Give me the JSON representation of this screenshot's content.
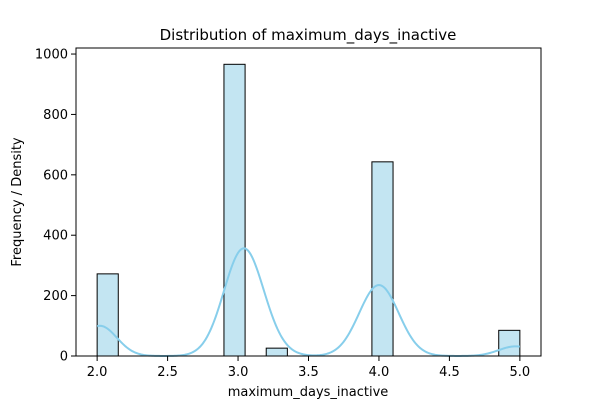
{
  "chart_data": {
    "type": "bar",
    "title": "Distribution of maximum_days_inactive",
    "xlabel": "maximum_days_inactive",
    "ylabel": "Frequency / Density",
    "xlim": [
      1.85,
      5.15
    ],
    "ylim": [
      0,
      1020
    ],
    "x_ticks": [
      "2.0",
      "2.5",
      "3.0",
      "3.5",
      "4.0",
      "4.5",
      "5.0"
    ],
    "y_ticks": [
      "0",
      "200",
      "400",
      "600",
      "800",
      "1000"
    ],
    "bin_width": 0.15,
    "bars": [
      {
        "x0": 2.0,
        "x1": 2.15,
        "value": 272
      },
      {
        "x0": 2.9,
        "x1": 3.05,
        "value": 966
      },
      {
        "x0": 3.2,
        "x1": 3.35,
        "value": 26
      },
      {
        "x0": 3.95,
        "x1": 4.1,
        "value": 643
      },
      {
        "x0": 4.85,
        "x1": 5.0,
        "value": 85
      }
    ],
    "kde": {
      "peaks": [
        {
          "center": 2.02,
          "height": 100,
          "sigma": 0.12
        },
        {
          "center": 3.04,
          "height": 355,
          "sigma": 0.14
        },
        {
          "center": 3.25,
          "height": 8,
          "sigma": 0.12
        },
        {
          "center": 4.0,
          "height": 235,
          "sigma": 0.14
        },
        {
          "center": 4.97,
          "height": 32,
          "sigma": 0.12
        }
      ],
      "x_range": [
        2.0,
        5.0
      ]
    },
    "colors": {
      "bar_fill": "#c3e5f2",
      "bar_edge": "#000000",
      "kde_line": "#87ceeb"
    },
    "grid": false,
    "legend": "none"
  }
}
